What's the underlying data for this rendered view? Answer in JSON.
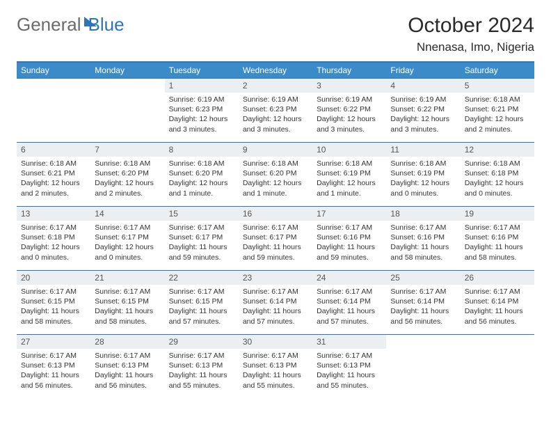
{
  "logo": {
    "part1": "General",
    "part2": "Blue"
  },
  "title": "October 2024",
  "location": "Nnenasa, Imo, Nigeria",
  "colors": {
    "header_bg": "#3b8bc9",
    "header_text": "#ffffff",
    "border": "#2f75b5",
    "daynum_bg": "#eceff2",
    "text": "#333333"
  },
  "day_headers": [
    "Sunday",
    "Monday",
    "Tuesday",
    "Wednesday",
    "Thursday",
    "Friday",
    "Saturday"
  ],
  "weeks": [
    [
      null,
      null,
      {
        "n": "1",
        "sr": "Sunrise: 6:19 AM",
        "ss": "Sunset: 6:23 PM",
        "dl1": "Daylight: 12 hours",
        "dl2": "and 3 minutes."
      },
      {
        "n": "2",
        "sr": "Sunrise: 6:19 AM",
        "ss": "Sunset: 6:23 PM",
        "dl1": "Daylight: 12 hours",
        "dl2": "and 3 minutes."
      },
      {
        "n": "3",
        "sr": "Sunrise: 6:19 AM",
        "ss": "Sunset: 6:22 PM",
        "dl1": "Daylight: 12 hours",
        "dl2": "and 3 minutes."
      },
      {
        "n": "4",
        "sr": "Sunrise: 6:19 AM",
        "ss": "Sunset: 6:22 PM",
        "dl1": "Daylight: 12 hours",
        "dl2": "and 3 minutes."
      },
      {
        "n": "5",
        "sr": "Sunrise: 6:18 AM",
        "ss": "Sunset: 6:21 PM",
        "dl1": "Daylight: 12 hours",
        "dl2": "and 2 minutes."
      }
    ],
    [
      {
        "n": "6",
        "sr": "Sunrise: 6:18 AM",
        "ss": "Sunset: 6:21 PM",
        "dl1": "Daylight: 12 hours",
        "dl2": "and 2 minutes."
      },
      {
        "n": "7",
        "sr": "Sunrise: 6:18 AM",
        "ss": "Sunset: 6:20 PM",
        "dl1": "Daylight: 12 hours",
        "dl2": "and 2 minutes."
      },
      {
        "n": "8",
        "sr": "Sunrise: 6:18 AM",
        "ss": "Sunset: 6:20 PM",
        "dl1": "Daylight: 12 hours",
        "dl2": "and 1 minute."
      },
      {
        "n": "9",
        "sr": "Sunrise: 6:18 AM",
        "ss": "Sunset: 6:20 PM",
        "dl1": "Daylight: 12 hours",
        "dl2": "and 1 minute."
      },
      {
        "n": "10",
        "sr": "Sunrise: 6:18 AM",
        "ss": "Sunset: 6:19 PM",
        "dl1": "Daylight: 12 hours",
        "dl2": "and 1 minute."
      },
      {
        "n": "11",
        "sr": "Sunrise: 6:18 AM",
        "ss": "Sunset: 6:19 PM",
        "dl1": "Daylight: 12 hours",
        "dl2": "and 0 minutes."
      },
      {
        "n": "12",
        "sr": "Sunrise: 6:18 AM",
        "ss": "Sunset: 6:18 PM",
        "dl1": "Daylight: 12 hours",
        "dl2": "and 0 minutes."
      }
    ],
    [
      {
        "n": "13",
        "sr": "Sunrise: 6:17 AM",
        "ss": "Sunset: 6:18 PM",
        "dl1": "Daylight: 12 hours",
        "dl2": "and 0 minutes."
      },
      {
        "n": "14",
        "sr": "Sunrise: 6:17 AM",
        "ss": "Sunset: 6:17 PM",
        "dl1": "Daylight: 12 hours",
        "dl2": "and 0 minutes."
      },
      {
        "n": "15",
        "sr": "Sunrise: 6:17 AM",
        "ss": "Sunset: 6:17 PM",
        "dl1": "Daylight: 11 hours",
        "dl2": "and 59 minutes."
      },
      {
        "n": "16",
        "sr": "Sunrise: 6:17 AM",
        "ss": "Sunset: 6:17 PM",
        "dl1": "Daylight: 11 hours",
        "dl2": "and 59 minutes."
      },
      {
        "n": "17",
        "sr": "Sunrise: 6:17 AM",
        "ss": "Sunset: 6:16 PM",
        "dl1": "Daylight: 11 hours",
        "dl2": "and 59 minutes."
      },
      {
        "n": "18",
        "sr": "Sunrise: 6:17 AM",
        "ss": "Sunset: 6:16 PM",
        "dl1": "Daylight: 11 hours",
        "dl2": "and 58 minutes."
      },
      {
        "n": "19",
        "sr": "Sunrise: 6:17 AM",
        "ss": "Sunset: 6:16 PM",
        "dl1": "Daylight: 11 hours",
        "dl2": "and 58 minutes."
      }
    ],
    [
      {
        "n": "20",
        "sr": "Sunrise: 6:17 AM",
        "ss": "Sunset: 6:15 PM",
        "dl1": "Daylight: 11 hours",
        "dl2": "and 58 minutes."
      },
      {
        "n": "21",
        "sr": "Sunrise: 6:17 AM",
        "ss": "Sunset: 6:15 PM",
        "dl1": "Daylight: 11 hours",
        "dl2": "and 58 minutes."
      },
      {
        "n": "22",
        "sr": "Sunrise: 6:17 AM",
        "ss": "Sunset: 6:15 PM",
        "dl1": "Daylight: 11 hours",
        "dl2": "and 57 minutes."
      },
      {
        "n": "23",
        "sr": "Sunrise: 6:17 AM",
        "ss": "Sunset: 6:14 PM",
        "dl1": "Daylight: 11 hours",
        "dl2": "and 57 minutes."
      },
      {
        "n": "24",
        "sr": "Sunrise: 6:17 AM",
        "ss": "Sunset: 6:14 PM",
        "dl1": "Daylight: 11 hours",
        "dl2": "and 57 minutes."
      },
      {
        "n": "25",
        "sr": "Sunrise: 6:17 AM",
        "ss": "Sunset: 6:14 PM",
        "dl1": "Daylight: 11 hours",
        "dl2": "and 56 minutes."
      },
      {
        "n": "26",
        "sr": "Sunrise: 6:17 AM",
        "ss": "Sunset: 6:14 PM",
        "dl1": "Daylight: 11 hours",
        "dl2": "and 56 minutes."
      }
    ],
    [
      {
        "n": "27",
        "sr": "Sunrise: 6:17 AM",
        "ss": "Sunset: 6:13 PM",
        "dl1": "Daylight: 11 hours",
        "dl2": "and 56 minutes."
      },
      {
        "n": "28",
        "sr": "Sunrise: 6:17 AM",
        "ss": "Sunset: 6:13 PM",
        "dl1": "Daylight: 11 hours",
        "dl2": "and 56 minutes."
      },
      {
        "n": "29",
        "sr": "Sunrise: 6:17 AM",
        "ss": "Sunset: 6:13 PM",
        "dl1": "Daylight: 11 hours",
        "dl2": "and 55 minutes."
      },
      {
        "n": "30",
        "sr": "Sunrise: 6:17 AM",
        "ss": "Sunset: 6:13 PM",
        "dl1": "Daylight: 11 hours",
        "dl2": "and 55 minutes."
      },
      {
        "n": "31",
        "sr": "Sunrise: 6:17 AM",
        "ss": "Sunset: 6:13 PM",
        "dl1": "Daylight: 11 hours",
        "dl2": "and 55 minutes."
      },
      null,
      null
    ]
  ]
}
